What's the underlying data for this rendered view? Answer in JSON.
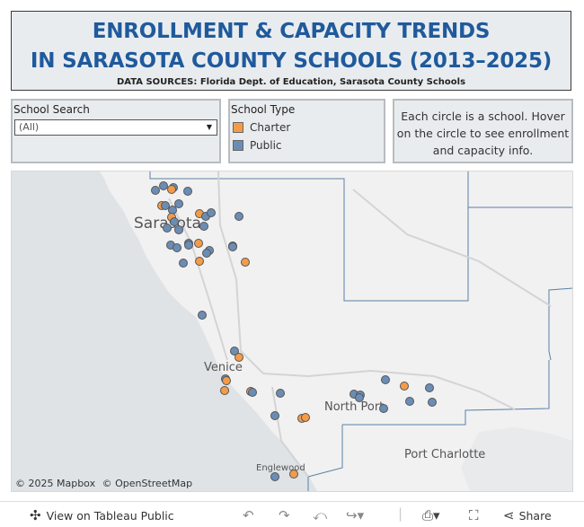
{
  "header": {
    "title_line1": "ENROLLMENT & CAPACITY TRENDS",
    "title_line2": "IN SARASOTA COUNTY SCHOOLS (2013–2025)",
    "sources": "DATA SOURCES: Florida Dept. of Education, Sarasota County Schools"
  },
  "filters": {
    "school_search": {
      "label": "School Search",
      "value": "(All)"
    },
    "school_type": {
      "label": "School Type",
      "items": [
        {
          "label": "Charter",
          "color": "#f28e2b"
        },
        {
          "label": "Public",
          "color": "#4e79a7"
        }
      ]
    }
  },
  "info": {
    "text": "Each circle is a school. Hover on the circle to see enrollment and capacity info."
  },
  "map": {
    "places": {
      "sarasota": "Sarasota",
      "venice": "Venice",
      "north_port": "North Port",
      "port_charlotte": "Port Charlotte",
      "englewood": "Englewood"
    },
    "attribution": {
      "mapbox": "© 2025 Mapbox",
      "osm": "© OpenStreetMap"
    },
    "colors": {
      "charter": "#f29c4a",
      "public": "#6b8db5",
      "water": "#dfe3e6",
      "land": "#f1f1f1"
    }
  },
  "toolbar": {
    "view_label": "View on Tableau Public",
    "share_label": "Share"
  }
}
